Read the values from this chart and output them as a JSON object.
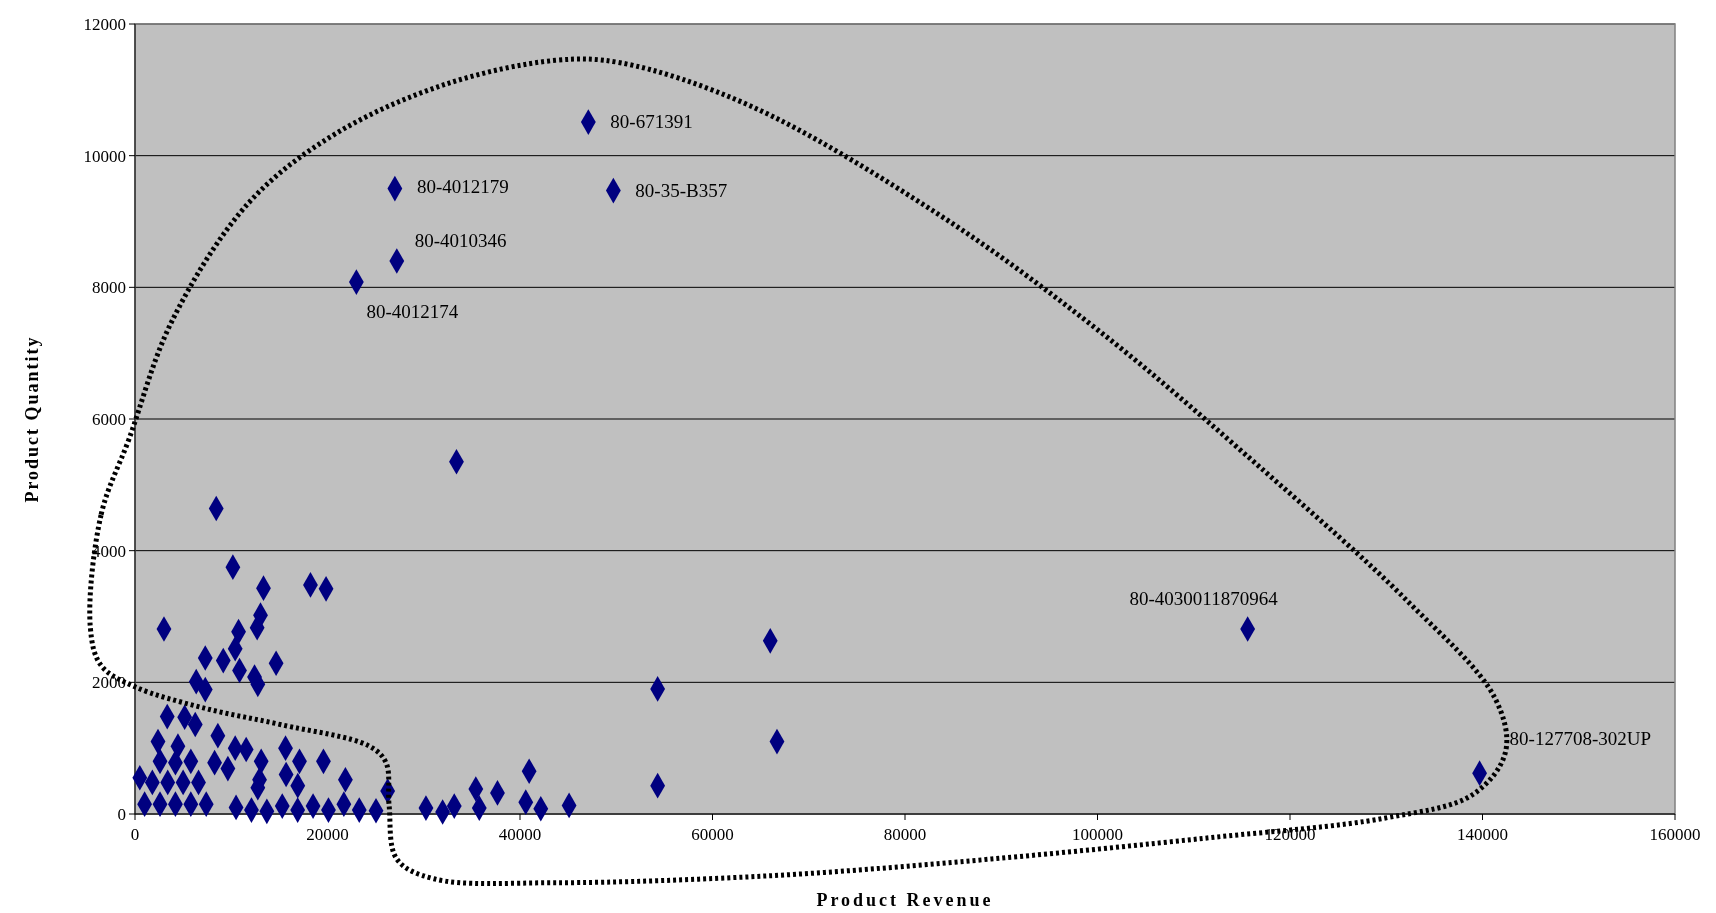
{
  "chart_data": {
    "type": "scatter",
    "xlabel": "Product Revenue",
    "ylabel": "Product Quantity",
    "xlim": [
      0,
      160000
    ],
    "xticks": [
      0,
      20000,
      40000,
      60000,
      80000,
      100000,
      120000,
      140000,
      160000
    ],
    "ylim": [
      0,
      12000
    ],
    "yticks": [
      0,
      2000,
      4000,
      6000,
      8000,
      10000,
      12000
    ],
    "grid": "y",
    "marker": "diamond",
    "series": [
      {
        "color": "#000080",
        "x": [
          47100,
          27000,
          49700,
          27200,
          23000,
          33400,
          115600,
          139700,
          8440,
          10170,
          13350,
          18230,
          19850,
          3010,
          13040,
          12690,
          10760,
          10410,
          7300,
          9170,
          14660,
          10860,
          12420,
          12760,
          6360,
          7300,
          54300,
          66000,
          66700,
          54300,
          3350,
          5160,
          6260,
          2390,
          4460,
          8610,
          10410,
          11550,
          15640,
          17090,
          19580,
          13110,
          8270,
          9650,
          21860,
          15700,
          12940,
          16910,
          12760,
          26250,
          40950,
          35410,
          37660,
          40600,
          42160,
          45100,
          35770,
          30230,
          31960,
          33170,
          25040,
          1000,
          2600,
          4200,
          5800,
          7400,
          1800,
          3400,
          5000,
          6600,
          2600,
          4200,
          5800,
          500,
          10500,
          12100,
          13700,
          15300,
          16900,
          18500,
          20100,
          21700,
          23300
        ],
        "values": [
          10510,
          9500,
          9470,
          8400,
          8080,
          5350,
          2810,
          620,
          4640,
          3750,
          3430,
          3480,
          3420,
          2810,
          3020,
          2830,
          2770,
          2510,
          2370,
          2330,
          2290,
          2180,
          2080,
          1970,
          2010,
          1890,
          1900,
          2630,
          1100,
          430,
          1480,
          1470,
          1360,
          1100,
          1030,
          1190,
          1000,
          980,
          1000,
          800,
          800,
          800,
          780,
          690,
          520,
          600,
          520,
          430,
          400,
          350,
          650,
          380,
          320,
          180,
          80,
          130,
          90,
          90,
          30,
          120,
          50,
          150,
          150,
          150,
          150,
          150,
          480,
          480,
          480,
          480,
          800,
          780,
          800,
          550,
          100,
          60,
          40,
          120,
          60,
          120,
          60,
          150,
          60
        ]
      }
    ],
    "annotations": [
      {
        "text": "80-671391",
        "x": 47100,
        "y": 10510
      },
      {
        "text": "80-4012179",
        "x": 27000,
        "y": 9500
      },
      {
        "text": "80-35-B357",
        "x": 49700,
        "y": 9470
      },
      {
        "text": "80-4010346",
        "x": 27200,
        "y": 8400
      },
      {
        "text": "80-4012174",
        "x": 23000,
        "y": 8080
      },
      {
        "text": "80-4030011870964",
        "x": 115600,
        "y": 2810
      },
      {
        "text": "80-127708-302UP",
        "x": 139700,
        "y": 620
      }
    ]
  }
}
